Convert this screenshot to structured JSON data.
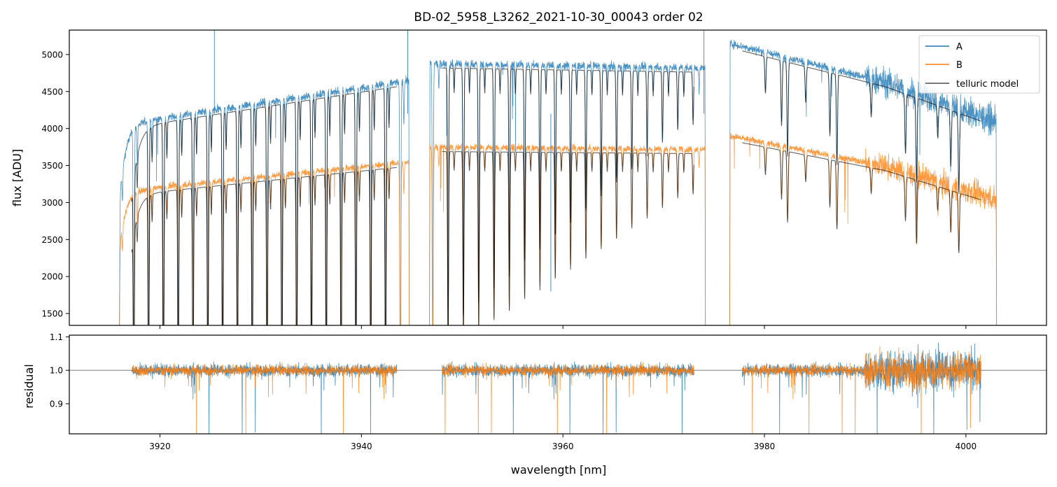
{
  "chart_data": [
    {
      "type": "line",
      "title": "BD-02_5958_L3262_2021-10-30_00043  order 02",
      "ylabel": "flux [ADU]",
      "xlim": [
        3911,
        4008
      ],
      "ylim": [
        1340,
        5330
      ],
      "yticks": [
        1500,
        2000,
        2500,
        3000,
        3500,
        4000,
        4500,
        5000
      ],
      "ytick_labels": [
        "1500",
        "2000",
        "2500",
        "3000",
        "3500",
        "4000",
        "4500",
        "5000"
      ],
      "legend_position": "upper right",
      "series": [
        {
          "name": "A",
          "color": "#1f77b4",
          "segments": [
            {
              "x_start": 3916.0,
              "x_end": 3944.7,
              "base_start": 4050,
              "base_end": 4650,
              "line_depth_max": 3400
            },
            {
              "x_start": 3946.8,
              "x_end": 3974.1,
              "base_start": 4880,
              "base_end": 4820,
              "line_depth_max": 2300
            },
            {
              "x_start": 3976.6,
              "x_end": 4003.0,
              "base_start": 5150,
              "base_end": 4250,
              "line_depth_max": 1500
            }
          ]
        },
        {
          "name": "B",
          "color": "#ff7f0e",
          "segments": [
            {
              "x_start": 3916.0,
              "x_end": 3944.7,
              "base_start": 3150,
              "base_end": 3550,
              "line_depth_max": 2400
            },
            {
              "x_start": 3946.8,
              "x_end": 3974.1,
              "base_start": 3750,
              "base_end": 3720,
              "line_depth_max": 1400
            },
            {
              "x_start": 3976.6,
              "x_end": 4003.0,
              "base_start": 3900,
              "base_end": 3200,
              "line_depth_max": 900
            }
          ]
        },
        {
          "name": "telluric model",
          "color": "#000000",
          "segments": [
            {
              "x_start": 3917.2,
              "x_end": 3943.5
            },
            {
              "x_start": 3948.0,
              "x_end": 3973.0
            },
            {
              "x_start": 3977.8,
              "x_end": 4001.5
            }
          ]
        }
      ]
    },
    {
      "type": "line",
      "xlabel": "wavelength [nm]",
      "ylabel": "residual",
      "xlim": [
        3911,
        4008
      ],
      "ylim": [
        0.81,
        1.105
      ],
      "xticks": [
        3920,
        3940,
        3960,
        3980,
        4000
      ],
      "xtick_labels": [
        "3920",
        "3940",
        "3960",
        "3980",
        "4000"
      ],
      "yticks": [
        0.9,
        1.0,
        1.1
      ],
      "ytick_labels": [
        "0.9",
        "1.0",
        "1.1"
      ],
      "reference_line": 1.0,
      "series": [
        {
          "name": "A",
          "color": "#1f77b4",
          "segments": [
            [
              3917.2,
              3943.5
            ],
            [
              3948.0,
              3973.0
            ],
            [
              3977.8,
              4001.5
            ]
          ]
        },
        {
          "name": "B",
          "color": "#ff7f0e",
          "segments": [
            [
              3917.2,
              3943.5
            ],
            [
              3948.0,
              3973.0
            ],
            [
              3977.8,
              4001.5
            ]
          ]
        }
      ]
    }
  ]
}
